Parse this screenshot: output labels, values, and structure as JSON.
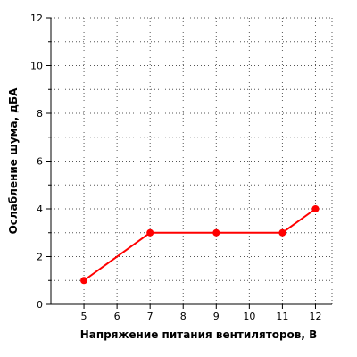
{
  "chart_data": {
    "type": "line",
    "title": "",
    "xlabel": "Напряжение питания вентиляторов, В",
    "ylabel": "Ослабление шума, дБА",
    "xlim": [
      4,
      12.5
    ],
    "ylim": [
      0,
      12
    ],
    "x_ticks": [
      5,
      6,
      7,
      8,
      9,
      10,
      11,
      12
    ],
    "y_ticks": [
      0,
      2,
      4,
      6,
      8,
      10,
      12
    ],
    "grid": true,
    "series": [
      {
        "x": [
          5,
          7,
          9,
          11,
          12
        ],
        "y": [
          1,
          3,
          3,
          3,
          4
        ],
        "color": "#ff0000"
      }
    ]
  }
}
